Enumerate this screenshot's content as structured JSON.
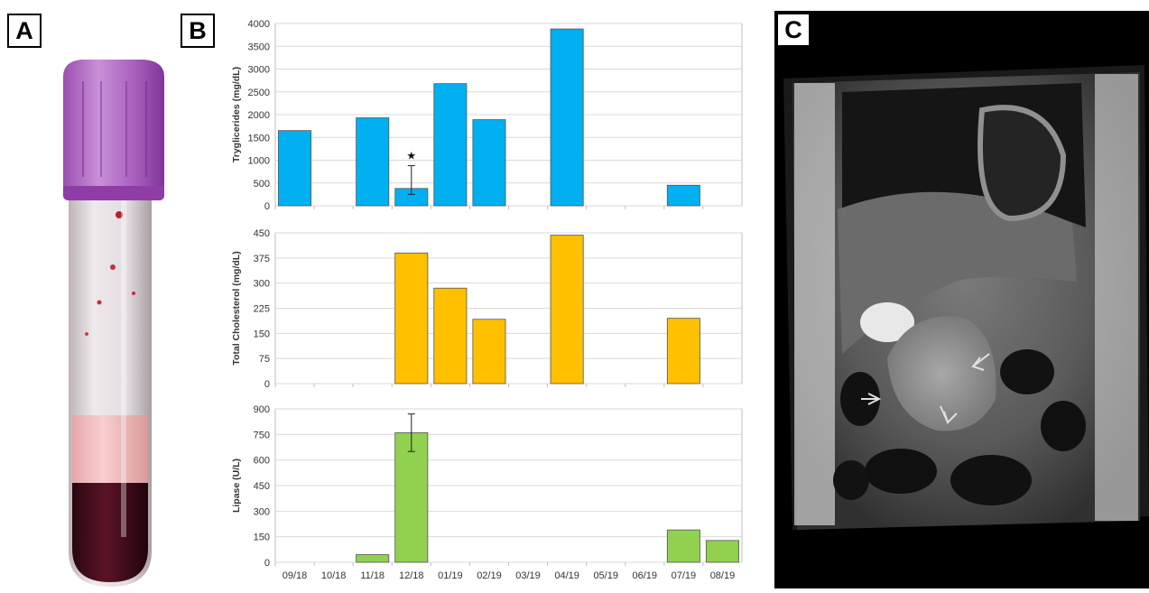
{
  "panels": {
    "a": "A",
    "b": "B",
    "c": "C"
  },
  "chart_data": {
    "type": "bar",
    "categories": [
      "09/18",
      "10/18",
      "11/18",
      "12/18",
      "01/19",
      "02/19",
      "03/19",
      "04/19",
      "05/19",
      "06/19",
      "07/19",
      "08/19"
    ],
    "series": [
      {
        "ylabel": "Tryglicerides (mg/dL)",
        "color": "#00b0f0",
        "values": [
          1650,
          null,
          1930,
          380,
          2680,
          1890,
          null,
          3880,
          null,
          null,
          450,
          null
        ],
        "error": {
          "category": "12/18",
          "low": 250,
          "high": 880
        },
        "annotation": {
          "category": "12/18",
          "symbol": "★"
        },
        "ylim": [
          0,
          4000
        ],
        "yticks": [
          0,
          500,
          1000,
          1500,
          2000,
          2500,
          3000,
          3500,
          4000
        ]
      },
      {
        "ylabel": "Total Cholesterol (mg/dL)",
        "color": "#ffc000",
        "values": [
          null,
          null,
          null,
          390,
          285,
          192,
          null,
          443,
          null,
          null,
          195,
          null
        ],
        "ylim": [
          0,
          450
        ],
        "yticks": [
          0,
          75,
          150,
          225,
          300,
          375,
          450
        ]
      },
      {
        "ylabel": "Lipase (U/L)",
        "color": "#92d050",
        "values": [
          null,
          null,
          45,
          760,
          null,
          null,
          null,
          null,
          null,
          null,
          190,
          128
        ],
        "error": {
          "category": "12/18",
          "low": 650,
          "high": 870
        },
        "ylim": [
          0,
          900
        ],
        "yticks": [
          0,
          150,
          300,
          450,
          600,
          750,
          900
        ]
      }
    ],
    "grid": true
  }
}
